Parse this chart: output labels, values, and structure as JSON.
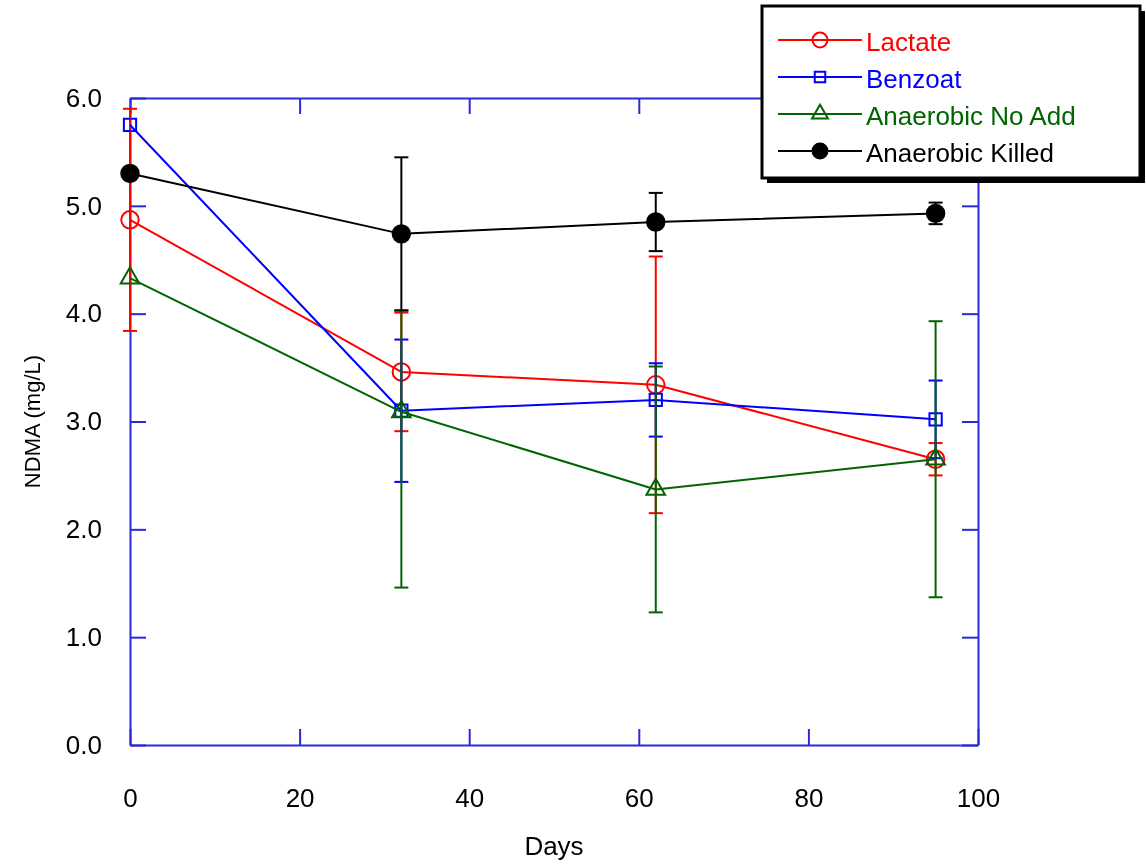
{
  "chart_data": {
    "type": "line",
    "xlabel": "Days",
    "ylabel": "NDMA (mg/L)",
    "x": [
      0,
      32,
      62,
      95
    ],
    "xlim": [
      0,
      100
    ],
    "xticks": [
      0,
      20,
      40,
      60,
      80,
      100
    ],
    "ylim": [
      0,
      6
    ],
    "yticks": [
      {
        "value": 0,
        "label": "0.0"
      },
      {
        "value": 1,
        "label": "1.0"
      },
      {
        "value": 2,
        "label": "2.0"
      },
      {
        "value": 3,
        "label": "3.0"
      },
      {
        "value": 4,
        "label": "4.0"
      },
      {
        "value": 5,
        "label": "5.0"
      },
      {
        "value": 6,
        "label": "6.0"
      }
    ],
    "grid": false,
    "legend": "top right",
    "line_style": "solid",
    "series": [
      {
        "name": "Lactate",
        "color": "#ff0000",
        "marker": "circle",
        "values": [
          4.87,
          3.46,
          3.34,
          2.65
        ],
        "errors": [
          1.03,
          0.55,
          1.19,
          0.15
        ]
      },
      {
        "name": "Benzoat",
        "color": "#0000ff",
        "marker": "square",
        "values": [
          5.75,
          3.1,
          3.2,
          3.02
        ],
        "errors": [
          null,
          0.66,
          0.34,
          0.36
        ]
      },
      {
        "name": "Anaerobic No Add",
        "color": "#006400",
        "marker": "triangle",
        "values": [
          4.33,
          3.09,
          2.37,
          2.65
        ],
        "errors": [
          null,
          [
            1.46,
            4.03
          ],
          1.14,
          1.28
        ]
      },
      {
        "name": "Anaerobic Killed",
        "color": "#000000",
        "marker": "circle",
        "values": [
          5.3,
          4.74,
          4.85,
          4.93
        ],
        "errors": [
          null,
          0.71,
          0.27,
          0.1
        ]
      }
    ]
  }
}
